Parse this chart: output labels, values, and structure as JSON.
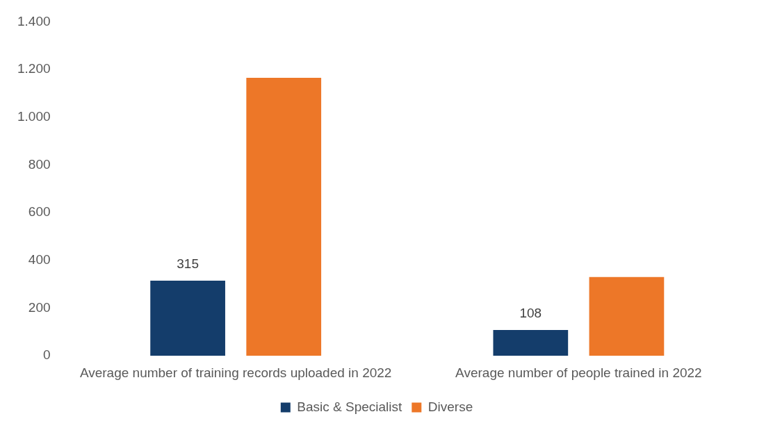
{
  "chart_data": {
    "type": "bar",
    "categories": [
      "Average number of training records uploaded in 2022",
      "Average number of people trained in 2022"
    ],
    "series": [
      {
        "name": "Basic & Specialist",
        "color": "#143d6b",
        "values": [
          315,
          108
        ],
        "value_labels": [
          "315",
          "108"
        ]
      },
      {
        "name": "Diverse",
        "color": "#ed7728",
        "values": [
          1165,
          330
        ]
      }
    ],
    "ylim": [
      0,
      1400
    ],
    "yticks": [
      0,
      200,
      400,
      600,
      800,
      {
        "value": 1000,
        "label": "1.000"
      },
      {
        "value": 1200,
        "label": "1.200"
      },
      {
        "value": 1400,
        "label": "1.400"
      }
    ],
    "grid": false,
    "legend": "bottom"
  }
}
